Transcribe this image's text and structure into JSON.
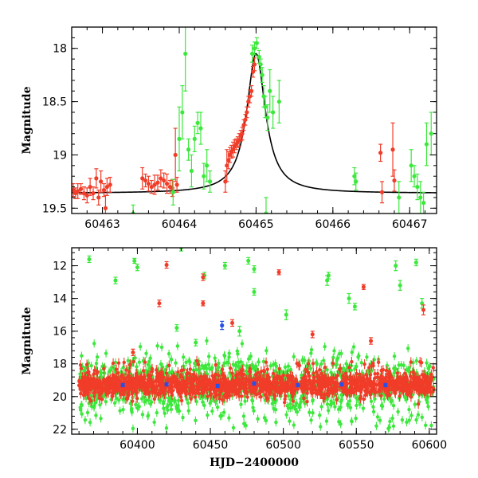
{
  "colors": {
    "g": "#3ce83c",
    "r": "#f03c28",
    "b": "#2850e6"
  },
  "chart_data": [
    {
      "type": "scatter",
      "title": "",
      "xlabel": "",
      "ylabel": "Magnitude",
      "xlim": [
        60462.6,
        60467.35
      ],
      "ylim": [
        19.55,
        17.8
      ],
      "y_inverted": true,
      "xticks": [
        60463,
        60464,
        60465,
        60466,
        60467
      ],
      "yticks": [
        18,
        18.5,
        19,
        19.5
      ],
      "model_curve": {
        "t0": 60465.0,
        "peak_mag": 18.05,
        "base_mag": 19.36,
        "tE": 0.28
      },
      "series": [
        {
          "color_key": "r",
          "points": [
            [
              60462.62,
              19.33,
              0.06
            ],
            [
              60462.65,
              19.36,
              0.05
            ],
            [
              60462.68,
              19.34,
              0.07
            ],
            [
              60462.72,
              19.32,
              0.05
            ],
            [
              60462.76,
              19.36,
              0.06
            ],
            [
              60462.8,
              19.38,
              0.07
            ],
            [
              60462.84,
              19.3,
              0.08
            ],
            [
              60462.88,
              19.36,
              0.06
            ],
            [
              60462.92,
              19.22,
              0.09
            ],
            [
              60462.95,
              19.4,
              0.07
            ],
            [
              60462.98,
              19.25,
              0.1
            ],
            [
              60463.02,
              19.33,
              0.06
            ],
            [
              60463.04,
              19.5,
              0.12
            ],
            [
              60463.06,
              19.3,
              0.08
            ],
            [
              60463.1,
              19.28,
              0.07
            ],
            [
              60463.52,
              19.22,
              0.1
            ],
            [
              60463.56,
              19.24,
              0.06
            ],
            [
              60463.6,
              19.27,
              0.07
            ],
            [
              60463.64,
              19.3,
              0.06
            ],
            [
              60463.68,
              19.28,
              0.09
            ],
            [
              60463.72,
              19.26,
              0.07
            ],
            [
              60463.76,
              19.22,
              0.08
            ],
            [
              60463.8,
              19.24,
              0.07
            ],
            [
              60463.84,
              19.27,
              0.09
            ],
            [
              60463.88,
              19.3,
              0.06
            ],
            [
              60463.91,
              19.31,
              0.08
            ],
            [
              60463.95,
              19.0,
              0.25
            ],
            [
              60463.97,
              19.28,
              0.07
            ],
            [
              60464.6,
              19.25,
              0.1
            ],
            [
              60464.62,
              19.1,
              0.15
            ],
            [
              60464.64,
              19.05,
              0.08
            ],
            [
              60464.66,
              19.0,
              0.07
            ],
            [
              60464.68,
              18.97,
              0.06
            ],
            [
              60464.7,
              18.95,
              0.07
            ],
            [
              60464.72,
              18.92,
              0.06
            ],
            [
              60464.74,
              18.9,
              0.05
            ],
            [
              60464.76,
              18.88,
              0.05
            ],
            [
              60464.78,
              18.86,
              0.06
            ],
            [
              60464.8,
              18.82,
              0.05
            ],
            [
              60464.82,
              18.8,
              0.06
            ],
            [
              60464.84,
              18.72,
              0.05
            ],
            [
              60464.86,
              18.67,
              0.05
            ],
            [
              60464.88,
              18.6,
              0.05
            ],
            [
              60464.9,
              18.5,
              0.05
            ],
            [
              60464.92,
              18.45,
              0.06
            ],
            [
              60464.94,
              18.4,
              0.05
            ],
            [
              60464.96,
              18.22,
              0.05
            ],
            [
              60464.98,
              18.15,
              0.06
            ],
            [
              60466.62,
              18.98,
              0.08
            ],
            [
              60466.64,
              19.35,
              0.1
            ],
            [
              60466.78,
              18.95,
              0.25
            ],
            [
              60466.8,
              19.24,
              0.1
            ]
          ]
        },
        {
          "color_key": "g",
          "points": [
            [
              60463.4,
              19.55,
              0.08
            ],
            [
              60463.92,
              19.35,
              0.12
            ],
            [
              60464.0,
              18.85,
              0.3
            ],
            [
              60464.04,
              18.6,
              0.25
            ],
            [
              60464.08,
              18.05,
              0.35
            ],
            [
              60464.12,
              18.95,
              0.1
            ],
            [
              60464.16,
              19.15,
              0.15
            ],
            [
              60464.2,
              18.85,
              0.12
            ],
            [
              60464.24,
              18.7,
              0.1
            ],
            [
              60464.28,
              18.75,
              0.15
            ],
            [
              60464.32,
              19.2,
              0.12
            ],
            [
              60464.36,
              19.1,
              0.15
            ],
            [
              60464.4,
              19.25,
              0.1
            ],
            [
              60464.95,
              18.05,
              0.08
            ],
            [
              60464.98,
              18.0,
              0.06
            ],
            [
              60465.01,
              17.95,
              0.05
            ],
            [
              60465.04,
              18.08,
              0.06
            ],
            [
              60465.06,
              18.15,
              0.05
            ],
            [
              60465.08,
              18.25,
              0.07
            ],
            [
              60465.1,
              18.45,
              0.1
            ],
            [
              60465.12,
              18.55,
              0.1
            ],
            [
              60465.15,
              18.65,
              0.12
            ],
            [
              60465.18,
              18.4,
              0.2
            ],
            [
              60465.22,
              18.6,
              0.15
            ],
            [
              60465.3,
              18.5,
              0.2
            ],
            [
              60465.13,
              19.55,
              0.15
            ],
            [
              60466.28,
              19.2,
              0.08
            ],
            [
              60466.3,
              19.25,
              0.08
            ],
            [
              60466.86,
              19.4,
              0.15
            ],
            [
              60467.02,
              19.1,
              0.15
            ],
            [
              60467.06,
              19.2,
              0.1
            ],
            [
              60467.1,
              19.3,
              0.12
            ],
            [
              60467.14,
              19.4,
              0.15
            ],
            [
              60467.18,
              19.45,
              0.1
            ],
            [
              60467.22,
              18.9,
              0.2
            ],
            [
              60467.28,
              18.8,
              0.2
            ]
          ]
        }
      ]
    },
    {
      "type": "scatter",
      "title": "",
      "xlabel": "HJD−2400000",
      "ylabel": "Magnitude",
      "xlim": [
        60355,
        60605
      ],
      "ylim": [
        22.3,
        10.9
      ],
      "y_inverted": true,
      "xticks": [
        60400,
        60450,
        60500,
        60550,
        60600
      ],
      "yticks": [
        12,
        14,
        16,
        18,
        20,
        22
      ],
      "series": [
        {
          "color_key": "b",
          "points": [
            [
              60458,
              15.65,
              0.25
            ],
            [
              60390,
              19.3,
              0.1
            ],
            [
              60420,
              19.25,
              0.1
            ],
            [
              60455,
              19.35,
              0.1
            ],
            [
              60480,
              19.2,
              0.1
            ],
            [
              60510,
              19.3,
              0.1
            ],
            [
              60540,
              19.25,
              0.1
            ],
            [
              60570,
              19.3,
              0.1
            ]
          ]
        }
      ],
      "outliers_green": [
        [
          60367,
          11.6,
          0.2
        ],
        [
          60385,
          12.9,
          0.2
        ],
        [
          60398,
          11.7,
          0.15
        ],
        [
          60400,
          12.1,
          0.2
        ],
        [
          60430,
          10.9,
          0.2
        ],
        [
          60446,
          12.6,
          0.2
        ],
        [
          60460,
          12.0,
          0.2
        ],
        [
          60476,
          11.7,
          0.2
        ],
        [
          60480,
          12.2,
          0.2
        ],
        [
          60480,
          13.6,
          0.2
        ],
        [
          60502,
          15.0,
          0.3
        ],
        [
          60530,
          12.9,
          0.3
        ],
        [
          60531,
          12.6,
          0.2
        ],
        [
          60545,
          14.0,
          0.3
        ],
        [
          60549,
          14.5,
          0.2
        ],
        [
          60577,
          12.0,
          0.3
        ],
        [
          60580,
          13.2,
          0.3
        ],
        [
          60591,
          11.8,
          0.2
        ],
        [
          60595,
          14.3,
          0.3
        ],
        [
          60427,
          15.8,
          0.2
        ],
        [
          60440,
          16.7,
          0.2
        ],
        [
          60470,
          16.0,
          0.3
        ]
      ],
      "outliers_red": [
        [
          60420,
          11.95,
          0.2
        ],
        [
          60415,
          14.3,
          0.2
        ],
        [
          60445,
          12.7,
          0.2
        ],
        [
          60445,
          14.3,
          0.15
        ],
        [
          60465,
          15.5,
          0.2
        ],
        [
          60497,
          12.4,
          0.15
        ],
        [
          60520,
          16.2,
          0.2
        ],
        [
          60555,
          13.3,
          0.15
        ],
        [
          60560,
          16.6,
          0.2
        ],
        [
          60596,
          14.7,
          0.3
        ],
        [
          60397,
          17.3,
          0.2
        ]
      ]
    }
  ]
}
